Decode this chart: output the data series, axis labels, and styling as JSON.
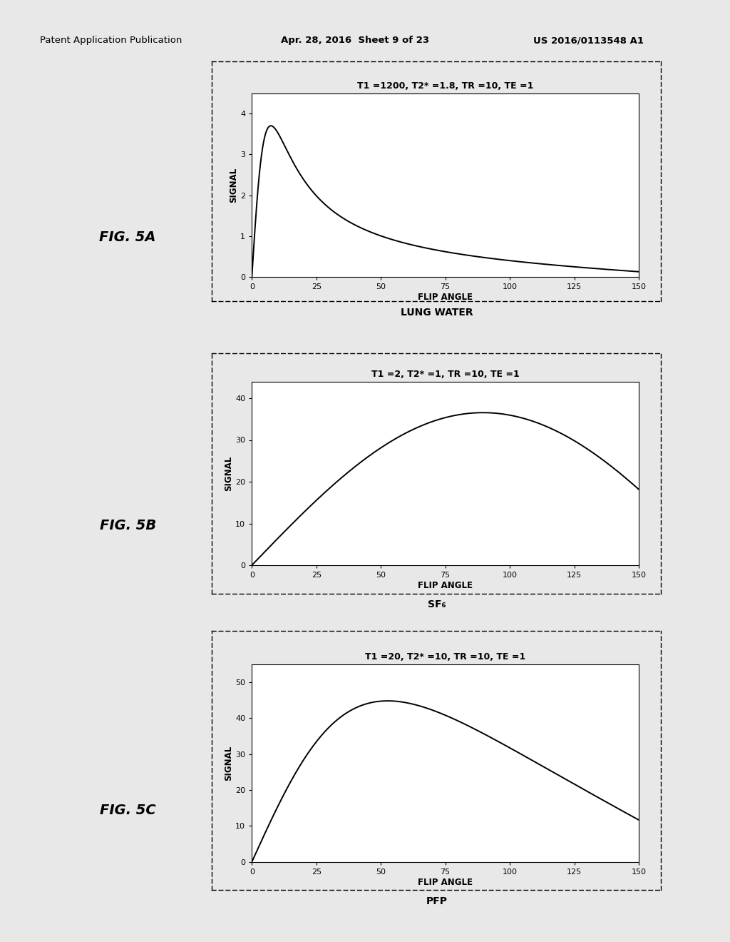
{
  "fig5a": {
    "title": "T1 =1200, T2* =1.8, TR =10, TE =1",
    "T1": 1200,
    "T2star": 1.8,
    "TR": 10,
    "TE": 1,
    "scale": 100,
    "ylabel": "SIGNAL",
    "xlabel": "FLIP ANGLE",
    "label": "LUNG WATER",
    "fig_label": "FIG. 5A",
    "ylim": [
      0,
      4.5
    ],
    "yticks": [
      0,
      1,
      2,
      3,
      4
    ],
    "xlim": [
      0,
      150
    ],
    "xticks": [
      0,
      25,
      50,
      75,
      100,
      125,
      150
    ]
  },
  "fig5b": {
    "title": "T1 =2, T2* =1, TR =10, TE =1",
    "T1": 2,
    "T2star": 1,
    "TR": 10,
    "TE": 1,
    "scale": 100,
    "ylabel": "SIGNAL",
    "xlabel": "FLIP ANGLE",
    "label": "SF₆",
    "fig_label": "FIG. 5B",
    "ylim": [
      0,
      44
    ],
    "yticks": [
      0,
      10,
      20,
      30,
      40
    ],
    "xlim": [
      0,
      150
    ],
    "xticks": [
      0,
      25,
      50,
      75,
      100,
      125,
      150
    ]
  },
  "fig5c": {
    "title": "T1 =20, T2* =10, TR =10, TE =1",
    "T1": 20,
    "T2star": 10,
    "TR": 10,
    "TE": 1,
    "scale": 100,
    "ylabel": "SIGNAL",
    "xlabel": "FLIP ANGLE",
    "label": "PFP",
    "fig_label": "FIG. 5C",
    "ylim": [
      0,
      55
    ],
    "yticks": [
      0,
      10,
      20,
      30,
      40,
      50
    ],
    "xlim": [
      0,
      150
    ],
    "xticks": [
      0,
      25,
      50,
      75,
      100,
      125,
      150
    ]
  },
  "bg_color": "#e8e8e8",
  "plot_bg": "#ffffff",
  "line_color": "#000000"
}
